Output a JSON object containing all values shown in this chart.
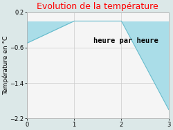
{
  "title": "Evolution de la température",
  "ylabel": "Température en °C",
  "xlabel": "heure par heure",
  "x": [
    0,
    1,
    2,
    3
  ],
  "y": [
    -0.5,
    0.0,
    0.0,
    -2.0
  ],
  "y_fill_baseline": 0,
  "xlim": [
    0,
    3
  ],
  "ylim": [
    -2.2,
    0.2
  ],
  "yticks": [
    0.2,
    -0.6,
    -1.4,
    -2.2
  ],
  "xticks": [
    0,
    1,
    2,
    3
  ],
  "fill_color": "#aadde8",
  "line_color": "#66bbcc",
  "title_color": "#ff0000",
  "bg_color": "#dce8e8",
  "plot_bg_color": "#f5f5f5",
  "grid_color": "#cccccc",
  "xlabel_fontsize": 7.5,
  "ylabel_fontsize": 6.5,
  "title_fontsize": 9,
  "tick_fontsize": 6
}
